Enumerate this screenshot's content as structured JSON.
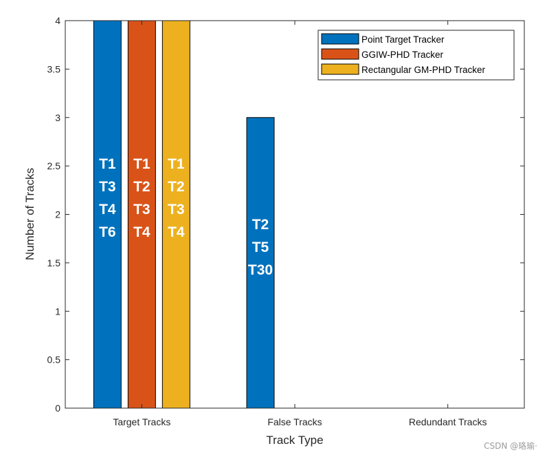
{
  "chart_data": {
    "type": "bar",
    "title": "",
    "xlabel": "Track Type",
    "ylabel": "Number of Tracks",
    "categories": [
      "Target Tracks",
      "False Tracks",
      "Redundant Tracks"
    ],
    "ylim": [
      0,
      4
    ],
    "yticks": [
      "0",
      "0.5",
      "1",
      "1.5",
      "2",
      "2.5",
      "3",
      "3.5",
      "4"
    ],
    "grid": false,
    "legend_position": "top-right",
    "series": [
      {
        "name": "Point Target Tracker",
        "color": "#0072BD",
        "values": [
          4,
          3,
          0
        ],
        "labels": [
          [
            "T1",
            "T3",
            "T4",
            "T6"
          ],
          [
            "T2",
            "T5",
            "T30"
          ],
          []
        ]
      },
      {
        "name": "GGIW-PHD Tracker",
        "color": "#D95319",
        "values": [
          4,
          0,
          0
        ],
        "labels": [
          [
            "T1",
            "T2",
            "T3",
            "T4"
          ],
          [],
          []
        ]
      },
      {
        "name": "Rectangular GM-PHD Tracker",
        "color": "#EDB120",
        "values": [
          4,
          0,
          0
        ],
        "labels": [
          [
            "T1",
            "T2",
            "T3",
            "T4"
          ],
          [],
          []
        ]
      }
    ]
  },
  "watermark": "CSDN @珞瑜·"
}
